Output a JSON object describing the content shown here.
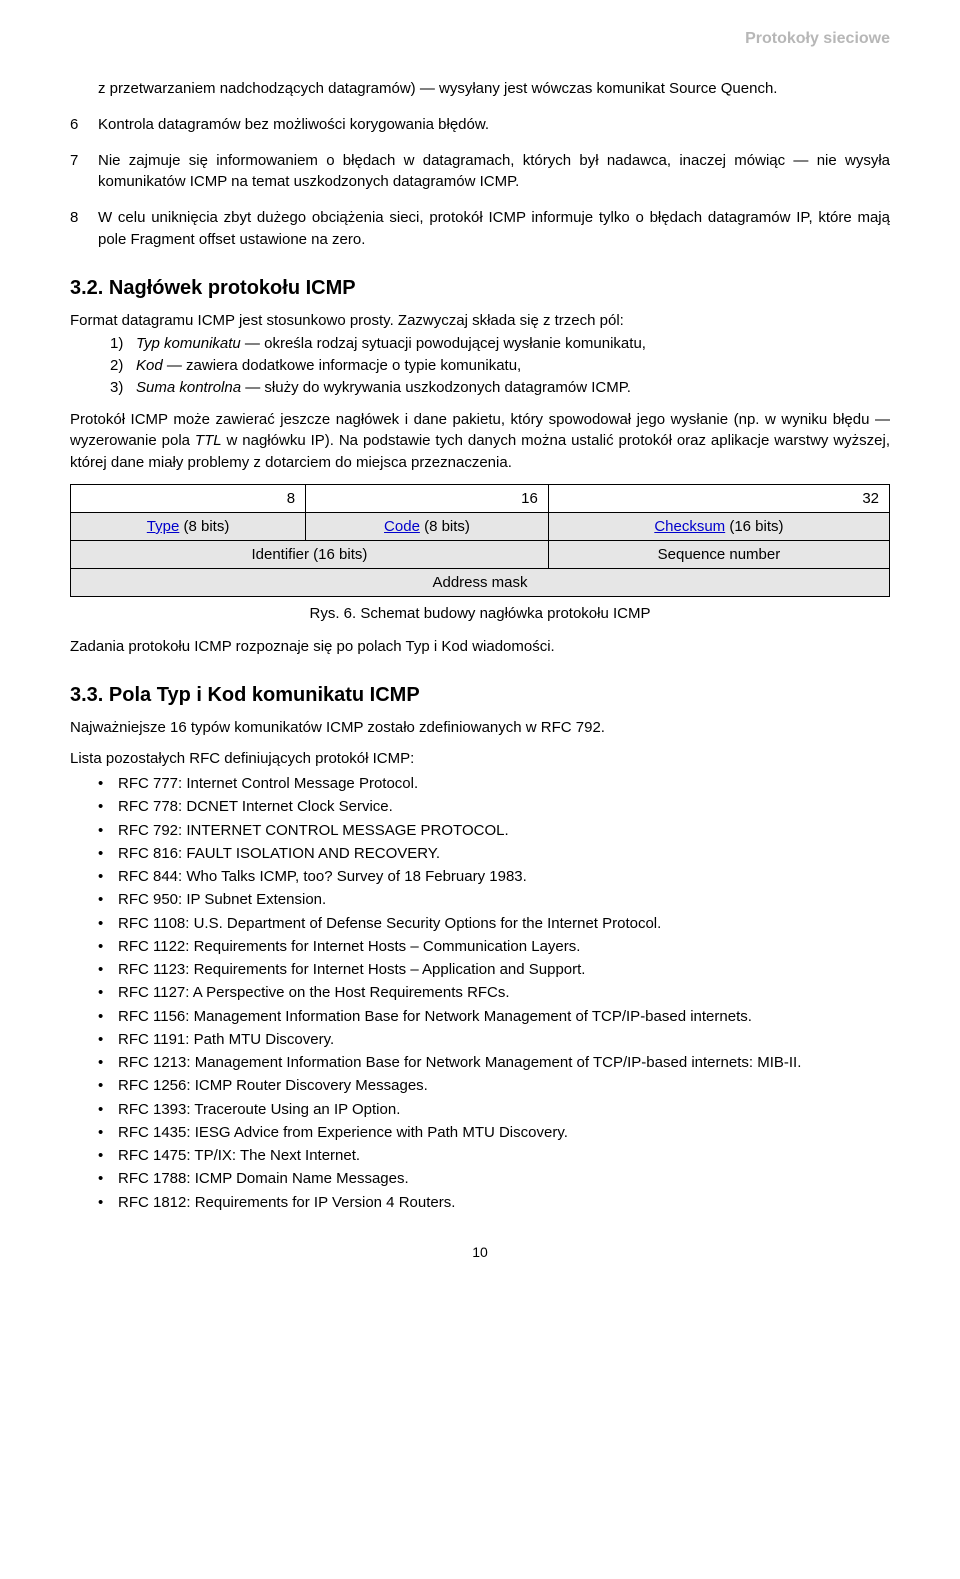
{
  "header_right": "Protokoły sieciowe",
  "items_cont": [
    {
      "n": "",
      "t": "z przetwarzaniem nadchodzących datagramów) — wysyłany jest wówczas komunikat Source Quench."
    },
    {
      "n": "6",
      "t": "Kontrola datagramów bez możliwości korygowania błędów."
    },
    {
      "n": "7",
      "t": "Nie zajmuje się informowaniem o błędach w datagramach, których był nadawca, inaczej mówiąc — nie wysyła komunikatów ICMP na temat uszkodzonych datagramów ICMP."
    },
    {
      "n": "8",
      "t": "W celu uniknięcia zbyt dużego obciążenia sieci, protokół ICMP informuje tylko o błędach datagramów IP, które mają pole Fragment offset ustawione na zero."
    }
  ],
  "sec32": {
    "title": "3.2. Nagłówek protokołu ICMP",
    "p1": "Format datagramu ICMP jest stosunkowo prosty. Zazwyczaj składa się z trzech pól:",
    "list": [
      {
        "n": "1)",
        "lead": "Typ komunikatu",
        "rest": " — określa rodzaj sytuacji powodującej wysłanie komunikatu,"
      },
      {
        "n": "2)",
        "lead": "Kod",
        "rest": " — zawiera dodatkowe informacje o typie komunikatu,"
      },
      {
        "n": "3)",
        "lead": "Suma kontrolna",
        "rest": " — służy do wykrywania uszkodzonych datagramów ICMP."
      }
    ],
    "p2a": "Protokół ICMP może zawierać jeszcze nagłówek i dane pakietu, który spowodował jego wysłanie (np. w wyniku błędu — wyzerowanie pola ",
    "p2_ttl": "TTL",
    "p2b": " w nagłówku IP). Na podstawie tych danych można ustalić protokół oraz aplikacje warstwy wyższej, której dane miały problemy z dotarciem do miejsca przeznaczenia."
  },
  "hdr_table": {
    "bits": {
      "a": "8",
      "b": "16",
      "c": "32"
    },
    "row1": {
      "type_link": "Type",
      "type_tail": " (8 bits)",
      "code_link": "Code",
      "code_tail": " (8 bits)",
      "ck_link": "Checksum",
      "ck_tail": " (16 bits)"
    },
    "row2": {
      "id": "Identifier (16 bits)",
      "seq": "Sequence number"
    },
    "row3": {
      "mask": "Address mask"
    }
  },
  "fig_caption": "Rys. 6. Schemat budowy nagłówka protokołu ICMP",
  "after_table": "Zadania protokołu ICMP rozpoznaje się po polach Typ i Kod wiadomości.",
  "sec33": {
    "title": "3.3. Pola Typ i Kod komunikatu ICMP",
    "p1": "Najważniejsze 16 typów komunikatów ICMP zostało zdefiniowanych w RFC 792.",
    "p2": "Lista pozostałych RFC definiujących protokół ICMP:",
    "rfcs": [
      "RFC 777: Internet Control Message Protocol.",
      "RFC 778: DCNET Internet Clock Service.",
      "RFC 792: INTERNET CONTROL MESSAGE PROTOCOL.",
      "RFC 816: FAULT ISOLATION AND RECOVERY.",
      "RFC 844: Who Talks ICMP, too? Survey of 18 February 1983.",
      "RFC 950: IP Subnet Extension.",
      "RFC 1108: U.S. Department of Defense Security Options for the Internet Protocol.",
      "RFC 1122: Requirements for Internet Hosts – Communication Layers.",
      "RFC 1123: Requirements for Internet Hosts – Application and Support.",
      "RFC 1127: A Perspective on the Host Requirements RFCs.",
      "RFC 1156: Management Information Base for Network Management of TCP/IP-based internets.",
      "RFC 1191: Path MTU Discovery.",
      "RFC 1213: Management Information Base for Network Management of TCP/IP-based internets: MIB-II.",
      "RFC 1256: ICMP Router Discovery Messages.",
      "RFC 1393: Traceroute Using an IP Option.",
      "RFC 1435: IESG Advice from Experience with Path MTU Discovery.",
      "RFC 1475: TP/IX: The Next Internet.",
      "RFC 1788: ICMP Domain Name Messages.",
      "RFC 1812: Requirements for IP Version 4 Routers."
    ]
  },
  "page_number": "10"
}
